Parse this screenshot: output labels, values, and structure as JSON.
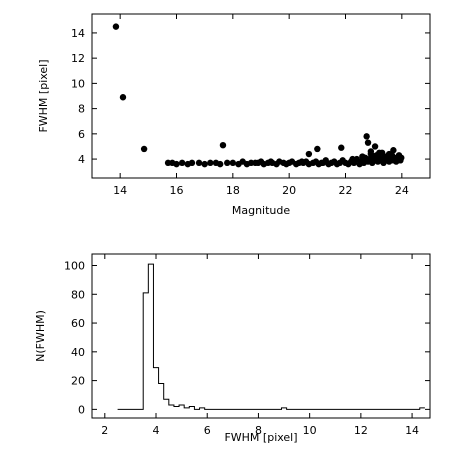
{
  "chart_data": [
    {
      "type": "scatter",
      "xlabel": "Magnitude",
      "ylabel": "FWHM [pixel]",
      "xlim": [
        13,
        25
      ],
      "ylim": [
        2.5,
        15.5
      ],
      "xticks": [
        14,
        16,
        18,
        20,
        22,
        24
      ],
      "yticks": [
        4,
        6,
        8,
        10,
        12,
        14
      ],
      "points": [
        [
          13.85,
          14.5
        ],
        [
          14.1,
          8.9
        ],
        [
          14.85,
          4.8
        ],
        [
          17.65,
          5.1
        ],
        [
          21.0,
          4.8
        ],
        [
          20.7,
          4.4
        ],
        [
          21.85,
          4.9
        ],
        [
          22.75,
          5.8
        ],
        [
          22.8,
          5.3
        ],
        [
          23.05,
          5.0
        ],
        [
          22.9,
          4.6
        ],
        [
          23.7,
          4.7
        ],
        [
          23.3,
          4.5
        ],
        [
          23.55,
          4.4
        ],
        [
          23.9,
          4.3
        ],
        [
          15.7,
          3.7
        ],
        [
          15.85,
          3.7
        ],
        [
          16.0,
          3.6
        ],
        [
          16.2,
          3.7
        ],
        [
          16.4,
          3.6
        ],
        [
          16.55,
          3.7
        ],
        [
          16.8,
          3.7
        ],
        [
          17.0,
          3.6
        ],
        [
          17.2,
          3.7
        ],
        [
          17.4,
          3.7
        ],
        [
          17.55,
          3.6
        ],
        [
          17.8,
          3.7
        ],
        [
          18.0,
          3.7
        ],
        [
          18.2,
          3.6
        ],
        [
          18.35,
          3.8
        ],
        [
          18.5,
          3.6
        ],
        [
          18.65,
          3.7
        ],
        [
          18.8,
          3.7
        ],
        [
          19.0,
          3.8
        ],
        [
          19.1,
          3.6
        ],
        [
          19.25,
          3.7
        ],
        [
          19.4,
          3.7
        ],
        [
          19.55,
          3.6
        ],
        [
          19.65,
          3.8
        ],
        [
          19.8,
          3.7
        ],
        [
          19.9,
          3.6
        ],
        [
          20.0,
          3.7
        ],
        [
          20.1,
          3.8
        ],
        [
          20.25,
          3.6
        ],
        [
          20.35,
          3.7
        ],
        [
          20.5,
          3.7
        ],
        [
          20.6,
          3.8
        ],
        [
          20.7,
          3.6
        ],
        [
          20.85,
          3.7
        ],
        [
          20.95,
          3.8
        ],
        [
          21.05,
          3.6
        ],
        [
          21.15,
          3.7
        ],
        [
          21.3,
          3.9
        ],
        [
          21.4,
          3.6
        ],
        [
          21.5,
          3.7
        ],
        [
          21.6,
          3.8
        ],
        [
          21.7,
          3.6
        ],
        [
          21.8,
          3.7
        ],
        [
          21.9,
          3.9
        ],
        [
          22.0,
          3.7
        ],
        [
          22.1,
          3.6
        ],
        [
          22.2,
          3.8
        ],
        [
          22.3,
          3.7
        ],
        [
          22.4,
          4.0
        ],
        [
          22.5,
          3.6
        ],
        [
          22.55,
          3.8
        ],
        [
          22.65,
          3.7
        ],
        [
          22.7,
          4.1
        ],
        [
          22.8,
          3.8
        ],
        [
          22.85,
          4.0
        ],
        [
          22.95,
          3.7
        ],
        [
          23.0,
          4.2
        ],
        [
          23.05,
          3.9
        ],
        [
          23.1,
          4.3
        ],
        [
          23.15,
          3.8
        ],
        [
          23.2,
          4.1
        ],
        [
          23.25,
          3.9
        ],
        [
          23.3,
          4.0
        ],
        [
          23.35,
          3.7
        ],
        [
          23.4,
          4.2
        ],
        [
          23.45,
          3.9
        ],
        [
          23.5,
          4.1
        ],
        [
          23.55,
          3.8
        ],
        [
          23.6,
          4.0
        ],
        [
          23.65,
          4.3
        ],
        [
          23.7,
          3.9
        ],
        [
          23.75,
          4.1
        ],
        [
          23.8,
          3.8
        ],
        [
          23.85,
          4.0
        ],
        [
          23.9,
          4.2
        ],
        [
          23.95,
          3.9
        ],
        [
          23.98,
          4.1
        ],
        [
          22.6,
          4.2
        ],
        [
          22.9,
          4.4
        ],
        [
          23.2,
          4.5
        ],
        [
          21.2,
          3.7
        ],
        [
          20.45,
          3.8
        ],
        [
          19.35,
          3.8
        ],
        [
          18.9,
          3.7
        ],
        [
          22.25,
          4.0
        ]
      ]
    },
    {
      "type": "histogram",
      "xlabel": "FWHM [pixel]",
      "ylabel": "N(FWHM)",
      "xlim": [
        1.5,
        14.7
      ],
      "ylim": [
        -6,
        108
      ],
      "xticks": [
        2,
        4,
        6,
        8,
        10,
        12,
        14
      ],
      "yticks": [
        0,
        20,
        40,
        60,
        80,
        100
      ],
      "bins": [
        [
          2.5,
          3.5,
          0
        ],
        [
          3.5,
          3.7,
          81
        ],
        [
          3.7,
          3.9,
          101
        ],
        [
          3.9,
          4.1,
          29
        ],
        [
          4.1,
          4.3,
          18
        ],
        [
          4.3,
          4.5,
          7
        ],
        [
          4.5,
          4.7,
          3
        ],
        [
          4.7,
          4.9,
          2
        ],
        [
          4.9,
          5.1,
          3
        ],
        [
          5.1,
          5.3,
          1
        ],
        [
          5.3,
          5.5,
          2
        ],
        [
          5.5,
          5.7,
          0
        ],
        [
          5.7,
          5.9,
          1
        ],
        [
          5.9,
          8.9,
          0
        ],
        [
          8.9,
          9.1,
          1
        ],
        [
          9.1,
          14.3,
          0
        ],
        [
          14.3,
          14.5,
          1
        ]
      ]
    }
  ]
}
